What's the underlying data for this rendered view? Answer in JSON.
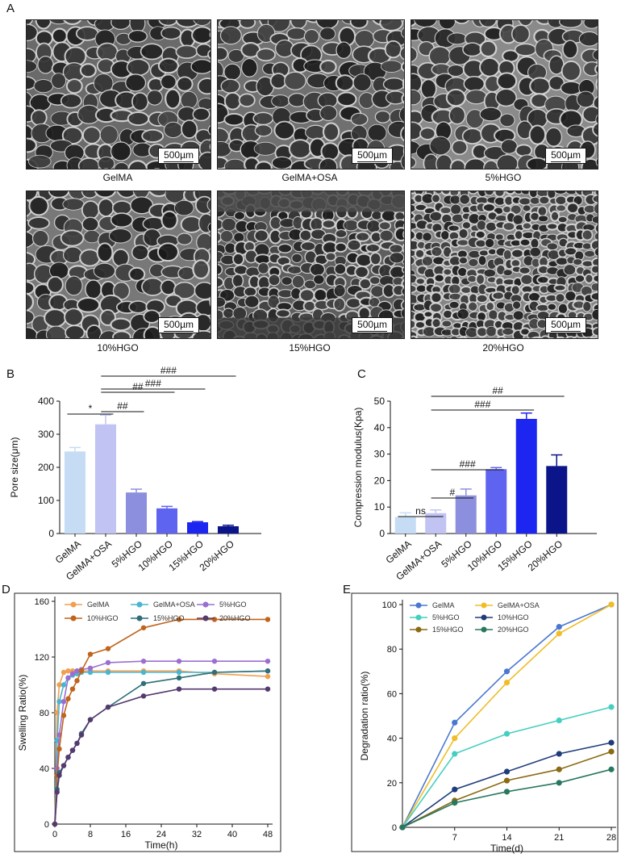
{
  "panels": {
    "A": "A",
    "B": "B",
    "C": "C",
    "D": "D",
    "E": "E"
  },
  "sem_images": [
    {
      "caption": "GelMA",
      "scale": "500µm",
      "tone": "#6a6a6a"
    },
    {
      "caption": "GelMA+OSA",
      "scale": "500µm",
      "tone": "#707070"
    },
    {
      "caption": "5%HGO",
      "scale": "500µm",
      "tone": "#8a8a8a"
    },
    {
      "caption": "10%HGO",
      "scale": "500µm",
      "tone": "#787878"
    },
    {
      "caption": "15%HGO",
      "scale": "500µm",
      "tone": "#5e5e5e"
    },
    {
      "caption": "20%HGO",
      "scale": "500µm",
      "tone": "#858585"
    }
  ],
  "chart_data": [
    {
      "id": "B",
      "type": "bar",
      "categories": [
        "GelMA",
        "GelMA+OSA",
        "5%HGO",
        "10%HGO",
        "15%HGO",
        "20%HGO"
      ],
      "values": [
        248,
        330,
        124,
        76,
        34,
        22
      ],
      "errors": [
        12,
        28,
        10,
        6,
        2,
        3
      ],
      "colors": [
        "#c6dcf5",
        "#c1c4f2",
        "#8c8fdd",
        "#5e64ef",
        "#1c26f0",
        "#0b1488"
      ],
      "ylabel": "Pore size(μm)",
      "ylim": [
        0,
        400
      ],
      "yticks": [
        0,
        100,
        200,
        300,
        400
      ],
      "annotations": [
        {
          "text": "*",
          "from": 0,
          "to": 1
        },
        {
          "text": "##",
          "from": 1,
          "to": 2
        },
        {
          "text": "##",
          "from": 1,
          "to": 3
        },
        {
          "text": "###",
          "from": 1,
          "to": 4
        },
        {
          "text": "###",
          "from": 1,
          "to": 5
        }
      ]
    },
    {
      "id": "C",
      "type": "bar",
      "categories": [
        "GelMA",
        "GelMA+OSA",
        "5%HGO",
        "10%HGO",
        "15%HGO",
        "20%HGO"
      ],
      "values": [
        6.2,
        7.7,
        14.4,
        24.3,
        43.3,
        25.5
      ],
      "errors": [
        1.6,
        1.2,
        2.4,
        0.6,
        2.2,
        4.2
      ],
      "colors": [
        "#c6dcf5",
        "#c1c4f2",
        "#8c8fdd",
        "#5e64ef",
        "#1c26f0",
        "#0b1488"
      ],
      "ylabel": "Compression modulus(Kpa)",
      "ylim": [
        0,
        50
      ],
      "yticks": [
        0,
        10,
        20,
        30,
        40,
        50
      ],
      "annotations": [
        {
          "text": "ns",
          "from": 0,
          "to": 1
        },
        {
          "text": "#",
          "from": 1,
          "to": 2
        },
        {
          "text": "###",
          "from": 1,
          "to": 3
        },
        {
          "text": "###",
          "from": 1,
          "to": 4
        },
        {
          "text": "##",
          "from": 1,
          "to": 5
        }
      ]
    },
    {
      "id": "D",
      "type": "line",
      "xlabel": "Time(h)",
      "ylabel": "Swelling Ratio(%)",
      "xlim": [
        0,
        48
      ],
      "ylim": [
        0,
        160
      ],
      "xticks": [
        0,
        8,
        16,
        24,
        32,
        40,
        48
      ],
      "yticks": [
        0,
        40,
        80,
        120,
        160
      ],
      "series": [
        {
          "name": "GelMA",
          "color": "#f0a050",
          "x": [
            0,
            0.5,
            1,
            2,
            3,
            4,
            5,
            6,
            8,
            12,
            20,
            28,
            36,
            48
          ],
          "y": [
            0,
            80,
            100,
            109,
            110,
            110,
            110,
            110,
            110,
            110,
            110,
            110,
            108,
            106
          ]
        },
        {
          "name": "GelMA+OSA",
          "color": "#4ab5d0",
          "x": [
            0,
            0.5,
            1,
            2,
            3,
            4,
            5,
            6,
            8,
            12,
            20,
            28,
            36,
            48
          ],
          "y": [
            0,
            60,
            88,
            100,
            105,
            107,
            108,
            109,
            109,
            109,
            109,
            109,
            109,
            110
          ]
        },
        {
          "name": "5%HGO",
          "color": "#9b6fd0",
          "x": [
            0,
            0.5,
            1,
            2,
            3,
            4,
            5,
            6,
            8,
            12,
            20,
            28,
            36,
            48
          ],
          "y": [
            0,
            40,
            64,
            88,
            105,
            108,
            110,
            111,
            112,
            116,
            117,
            117,
            117,
            117
          ]
        },
        {
          "name": "10%HGO",
          "color": "#c0641c",
          "x": [
            0,
            0.5,
            1,
            2,
            3,
            4,
            5,
            6,
            8,
            12,
            20,
            28,
            36,
            48
          ],
          "y": [
            0,
            35,
            54,
            78,
            90,
            97,
            103,
            110,
            122,
            126,
            141,
            147,
            147,
            147
          ]
        },
        {
          "name": "15%HGO",
          "color": "#2f6f78",
          "x": [
            0,
            0.5,
            1,
            2,
            3,
            4,
            5,
            6,
            8,
            12,
            20,
            28,
            36,
            48
          ],
          "y": [
            0,
            25,
            37,
            42,
            48,
            53,
            58,
            65,
            75,
            84,
            101,
            105,
            109,
            110
          ]
        },
        {
          "name": "20%HGO",
          "color": "#553a6e",
          "x": [
            0,
            0.5,
            1,
            2,
            3,
            4,
            5,
            6,
            8,
            12,
            20,
            28,
            36,
            48
          ],
          "y": [
            0,
            23,
            35,
            42,
            48,
            53,
            58,
            64,
            75,
            84,
            92,
            97,
            97,
            97
          ]
        }
      ]
    },
    {
      "id": "E",
      "type": "line",
      "xlabel": "Time(d)",
      "ylabel": "Degradation ratio(%)",
      "xlim": [
        0,
        28
      ],
      "ylim": [
        0,
        100
      ],
      "xticks": [
        7,
        14,
        21,
        28
      ],
      "yticks": [
        0,
        20,
        40,
        60,
        80,
        100
      ],
      "series": [
        {
          "name": "GelMA",
          "color": "#4a78d0",
          "x": [
            0,
            7,
            14,
            21,
            28
          ],
          "y": [
            0,
            47,
            70,
            90,
            100
          ]
        },
        {
          "name": "GelMA+OSA",
          "color": "#f0bd28",
          "x": [
            0,
            7,
            14,
            21,
            28
          ],
          "y": [
            0,
            40,
            65,
            87,
            100
          ]
        },
        {
          "name": "5%HGO",
          "color": "#46cfc0",
          "x": [
            0,
            7,
            14,
            21,
            28
          ],
          "y": [
            0,
            33,
            42,
            48,
            54
          ]
        },
        {
          "name": "10%HGO",
          "color": "#1f3c7a",
          "x": [
            0,
            7,
            14,
            21,
            28
          ],
          "y": [
            0,
            17,
            25,
            33,
            38
          ]
        },
        {
          "name": "15%HGO",
          "color": "#8a6a12",
          "x": [
            0,
            7,
            14,
            21,
            28
          ],
          "y": [
            0,
            12,
            21,
            26,
            34
          ]
        },
        {
          "name": "20%HGO",
          "color": "#287860",
          "x": [
            0,
            7,
            14,
            21,
            28
          ],
          "y": [
            0,
            11,
            16,
            20,
            26
          ]
        }
      ]
    }
  ]
}
